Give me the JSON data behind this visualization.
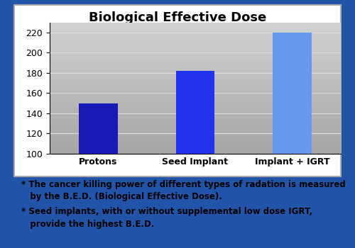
{
  "title": "Biological Effective Dose",
  "categories": [
    "Protons",
    "Seed Implant",
    "Implant + IGRT"
  ],
  "values": [
    150,
    182,
    220
  ],
  "bar_colors": [
    "#1a1ab8",
    "#2233ee",
    "#6699ee"
  ],
  "ylim": [
    100,
    230
  ],
  "yticks": [
    100,
    120,
    140,
    160,
    180,
    200,
    220
  ],
  "background_outer": "#2255aa",
  "background_chart": "#b8b8b8",
  "annotation1_line1": "* The cancer killing power of different types of radation is measured",
  "annotation1_line2": "   by the B.E.D. (Biological Effective Dose).",
  "annotation2_line1": "* Seed implants, with or without supplemental low dose IGRT,",
  "annotation2_line2": "   provide the highest B.E.D.",
  "title_fontsize": 13,
  "tick_fontsize": 9,
  "annot_fontsize": 8.5
}
